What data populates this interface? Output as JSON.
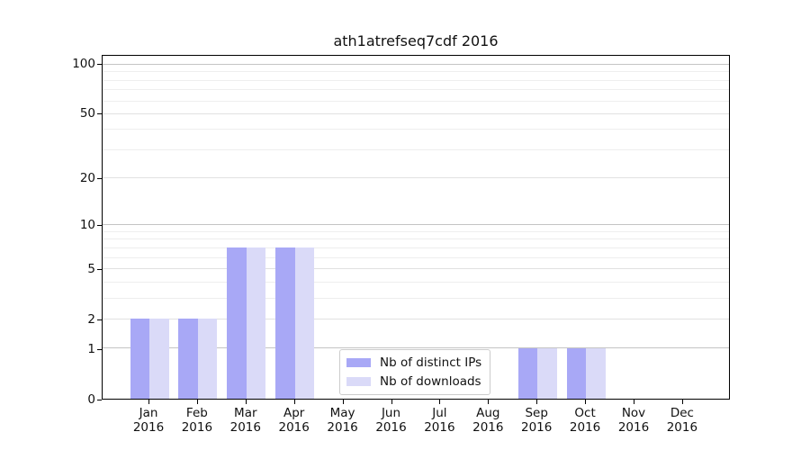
{
  "title": "ath1atrefseq7cdf 2016",
  "chart_data": {
    "type": "bar",
    "title": "ath1atrefseq7cdf 2016",
    "categories": [
      "Jan 2016",
      "Feb 2016",
      "Mar 2016",
      "Apr 2016",
      "May 2016",
      "Jun 2016",
      "Jul 2016",
      "Aug 2016",
      "Sep 2016",
      "Oct 2016",
      "Nov 2016",
      "Dec 2016"
    ],
    "series": [
      {
        "name": "Nb of distinct IPs",
        "color": "#a8a8f6",
        "values": [
          2,
          2,
          7,
          7,
          0,
          0,
          0,
          0,
          1,
          1,
          0,
          0
        ]
      },
      {
        "name": "Nb of downloads",
        "color": "#dadaf8",
        "values": [
          2,
          2,
          7,
          7,
          0,
          0,
          0,
          0,
          1,
          1,
          0,
          0
        ]
      }
    ],
    "xlabel": "",
    "ylabel": "",
    "yaxis": {
      "scale": "log1p",
      "max": 113.3,
      "major_ticks": [
        0,
        1,
        2,
        5,
        10,
        20,
        50,
        100
      ],
      "emphasized_ticks": [
        1,
        10,
        100
      ],
      "minor_ticks": [
        3,
        4,
        6,
        7,
        8,
        9,
        30,
        40,
        60,
        70,
        80,
        90
      ]
    },
    "grid": "on",
    "legend_position": "lower center"
  },
  "colors": {
    "bar_distinct_ips": "#a8a8f6",
    "bar_downloads": "#dadaf8",
    "grid_emphasized": "#c4c4c4",
    "grid_major": "#e1e1e1",
    "grid_minor": "#eeeeee",
    "axis_spine": "#000000",
    "legend_border": "#cccccc",
    "background": "#ffffff"
  }
}
